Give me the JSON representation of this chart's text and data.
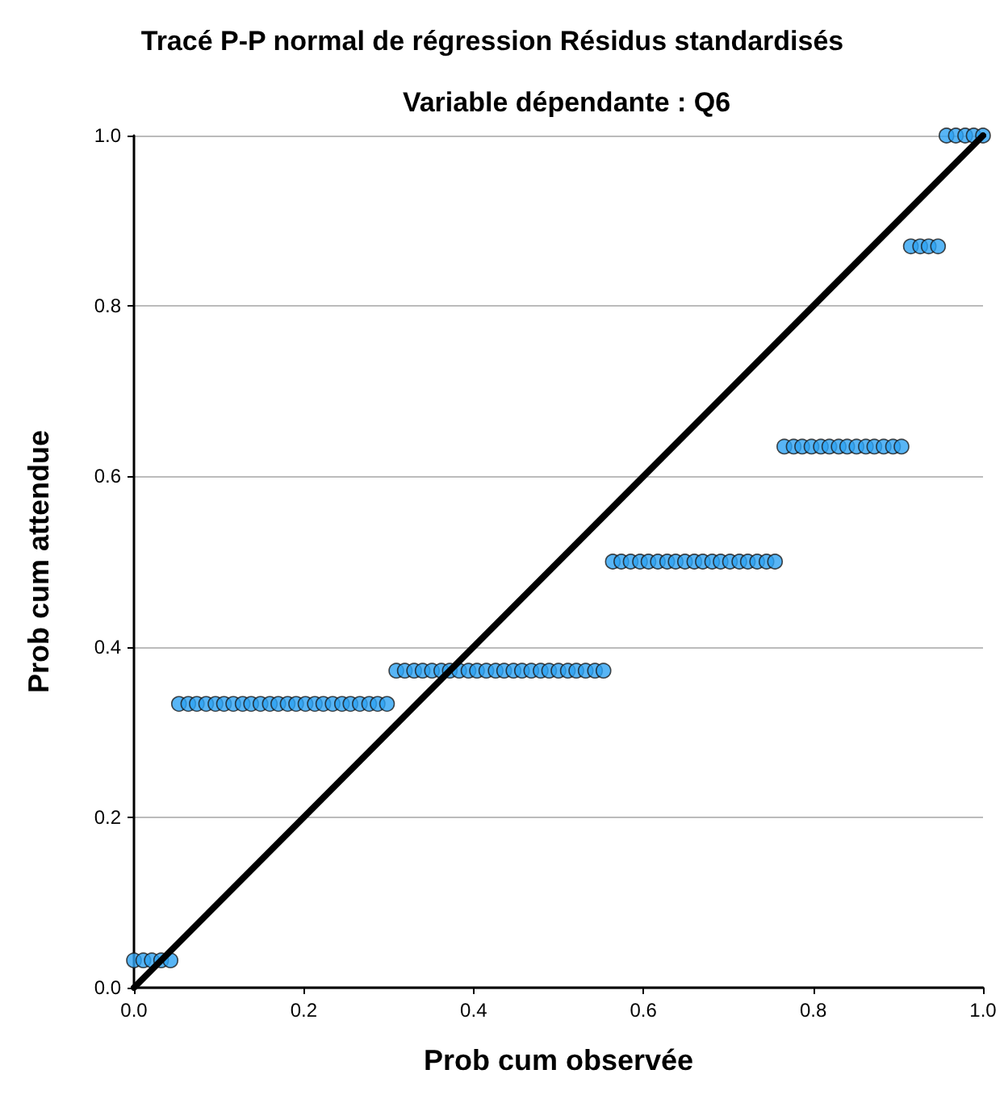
{
  "chart_data": {
    "type": "scatter",
    "title": "Tracé P-P normal de régression Résidus standardisés",
    "subtitle": "Variable dépendante : Q6",
    "xlabel": "Prob cum observée",
    "ylabel": "Prob cum attendue",
    "xlim": [
      0,
      1
    ],
    "ylim": [
      0,
      1
    ],
    "xticks": [
      {
        "value": 0,
        "label": "0.0"
      },
      {
        "value": 0.2,
        "label": "0.2"
      },
      {
        "value": 0.4,
        "label": "0.4"
      },
      {
        "value": 0.6,
        "label": "0.6"
      },
      {
        "value": 0.8,
        "label": "0.8"
      },
      {
        "value": 1,
        "label": "1.0"
      }
    ],
    "yticks": [
      {
        "value": 0,
        "label": "0.0"
      },
      {
        "value": 0.2,
        "label": "0.2"
      },
      {
        "value": 0.4,
        "label": "0.4"
      },
      {
        "value": 0.6,
        "label": "0.6"
      },
      {
        "value": 0.8,
        "label": "0.8"
      },
      {
        "value": 1,
        "label": "1.0"
      }
    ],
    "grid": "y",
    "series": [
      {
        "color": "#2ea3f2",
        "marker": "circle",
        "x": [
          0,
          0.011,
          0.021,
          0.032,
          0.043,
          0.053,
          0.064,
          0.074,
          0.085,
          0.096,
          0.106,
          0.117,
          0.128,
          0.138,
          0.149,
          0.16,
          0.17,
          0.181,
          0.191,
          0.202,
          0.213,
          0.223,
          0.234,
          0.245,
          0.255,
          0.266,
          0.277,
          0.287,
          0.298,
          0.309,
          0.319,
          0.33,
          0.34,
          0.351,
          0.362,
          0.372,
          0.383,
          0.394,
          0.404,
          0.415,
          0.426,
          0.436,
          0.447,
          0.457,
          0.468,
          0.479,
          0.489,
          0.5,
          0.511,
          0.521,
          0.532,
          0.543,
          0.553,
          0.564,
          0.574,
          0.585,
          0.596,
          0.606,
          0.617,
          0.628,
          0.638,
          0.649,
          0.66,
          0.67,
          0.681,
          0.691,
          0.702,
          0.713,
          0.723,
          0.734,
          0.745,
          0.755,
          0.766,
          0.777,
          0.787,
          0.798,
          0.809,
          0.819,
          0.83,
          0.84,
          0.851,
          0.862,
          0.872,
          0.883,
          0.894,
          0.904,
          0.915,
          0.926,
          0.936,
          0.947,
          0.957,
          0.968,
          0.979,
          0.989,
          1
        ],
        "values": [
          0.032,
          0.032,
          0.032,
          0.032,
          0.032,
          0.333,
          0.333,
          0.333,
          0.333,
          0.333,
          0.333,
          0.333,
          0.333,
          0.333,
          0.333,
          0.333,
          0.333,
          0.333,
          0.333,
          0.333,
          0.333,
          0.333,
          0.333,
          0.333,
          0.333,
          0.333,
          0.333,
          0.333,
          0.333,
          0.372,
          0.372,
          0.372,
          0.372,
          0.372,
          0.372,
          0.372,
          0.372,
          0.372,
          0.372,
          0.372,
          0.372,
          0.372,
          0.372,
          0.372,
          0.372,
          0.372,
          0.372,
          0.372,
          0.372,
          0.372,
          0.372,
          0.372,
          0.372,
          0.5,
          0.5,
          0.5,
          0.5,
          0.5,
          0.5,
          0.5,
          0.5,
          0.5,
          0.5,
          0.5,
          0.5,
          0.5,
          0.5,
          0.5,
          0.5,
          0.5,
          0.5,
          0.5,
          0.635,
          0.635,
          0.635,
          0.635,
          0.635,
          0.635,
          0.635,
          0.635,
          0.635,
          0.635,
          0.635,
          0.635,
          0.635,
          0.635,
          0.87,
          0.87,
          0.87,
          0.87,
          1,
          1,
          1,
          1,
          1
        ]
      },
      {
        "type": "line",
        "color": "#000000",
        "marker": "none",
        "line_style": "solid",
        "x": [
          0,
          1
        ],
        "values": [
          0,
          1
        ]
      }
    ]
  }
}
